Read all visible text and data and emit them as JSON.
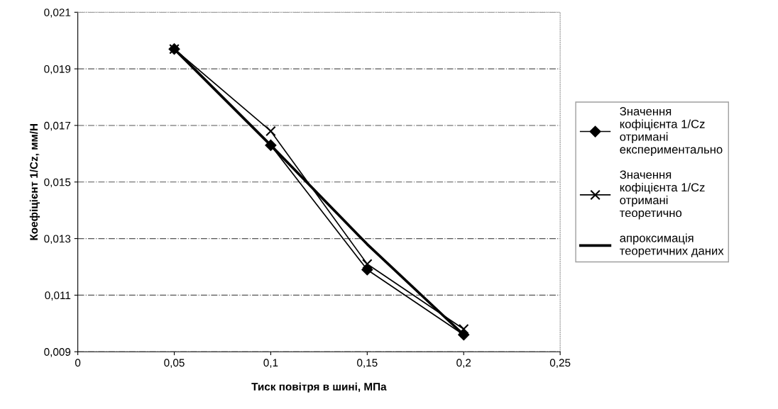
{
  "chart_data": {
    "type": "line",
    "xlabel": "Тиск повітря в шині, МПа",
    "ylabel": "Коефіцієнт 1/Cz, мм/Н",
    "x": [
      0.05,
      0.1,
      0.15,
      0.2
    ],
    "series": [
      {
        "name": "Значення кофіцієнта 1/Cz отримані експериментально",
        "color": "#000000",
        "marker": "diamond",
        "values": [
          0.0197,
          0.0163,
          0.0119,
          0.0096
        ]
      },
      {
        "name": "Значення кофіцієнта 1/Cz отримані теоретично",
        "color": "#000000",
        "marker": "cross",
        "values": [
          0.0197,
          0.0168,
          0.0121,
          0.0098
        ]
      },
      {
        "name": "апроксимація теоретичних даних",
        "color": "#000000",
        "marker": "none",
        "values": [
          0.0197,
          0.0163,
          0.0128,
          0.0096
        ]
      }
    ],
    "xlim": [
      0,
      0.25
    ],
    "ylim": [
      0.009,
      0.021
    ],
    "xticks": [
      {
        "value": 0,
        "label": "0"
      },
      {
        "value": 0.05,
        "label": "0,05"
      },
      {
        "value": 0.1,
        "label": "0,1"
      },
      {
        "value": 0.15,
        "label": "0,15"
      },
      {
        "value": 0.2,
        "label": "0,2"
      },
      {
        "value": 0.25,
        "label": "0,25"
      }
    ],
    "yticks": [
      {
        "value": 0.009,
        "label": "0,009"
      },
      {
        "value": 0.011,
        "label": "0,011"
      },
      {
        "value": 0.013,
        "label": "0,013"
      },
      {
        "value": 0.015,
        "label": "0,015"
      },
      {
        "value": 0.017,
        "label": "0,017"
      },
      {
        "value": 0.019,
        "label": "0,019"
      },
      {
        "value": 0.021,
        "label": "0,021"
      }
    ],
    "grid": "y",
    "legend": "right",
    "line_style": "solid"
  }
}
